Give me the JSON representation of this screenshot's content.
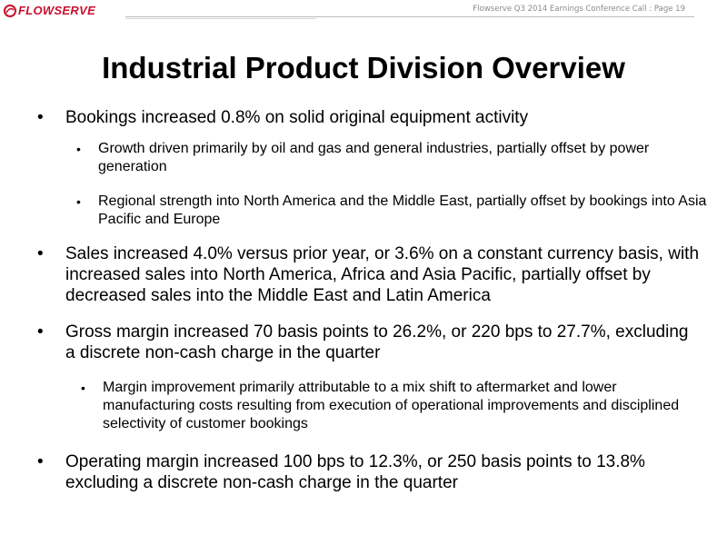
{
  "header": {
    "logo_text": "FLOWSERVE",
    "page_label": "Flowserve  Q3 2014 Earnings Conference Call  : Page 19"
  },
  "title": "Industrial Product Division Overview",
  "bullets": [
    {
      "level": 1,
      "text": "Bookings increased 0.8% on solid original equipment activity"
    },
    {
      "level": 2,
      "text": "Growth driven primarily by oil and gas and general industries, partially offset by power generation"
    },
    {
      "level": 2,
      "text": "Regional strength into North America and the Middle East, partially offset by bookings into Asia Pacific and Europe"
    },
    {
      "level": 1,
      "text": "Sales increased 4.0% versus prior year, or 3.6% on a constant currency basis, with increased sales into North America, Africa and Asia Pacific, partially offset by decreased sales into the Middle East and Latin America"
    },
    {
      "level": 1,
      "text": "Gross margin increased 70 basis points to 26.2%, or 220 bps to 27.7%, excluding a discrete non-cash charge in the quarter"
    },
    {
      "level": 2,
      "text": "Margin improvement primarily attributable to a mix shift to aftermarket and lower manufacturing costs resulting from execution of operational improvements and disciplined selectivity of customer bookings"
    },
    {
      "level": 1,
      "text": "Operating margin increased 100 bps to 12.3%, or 250 basis points to 13.8% excluding a discrete non-cash charge in the quarter"
    }
  ],
  "colors": {
    "brand": "#c8102e",
    "header_text": "#8a8a8a"
  }
}
